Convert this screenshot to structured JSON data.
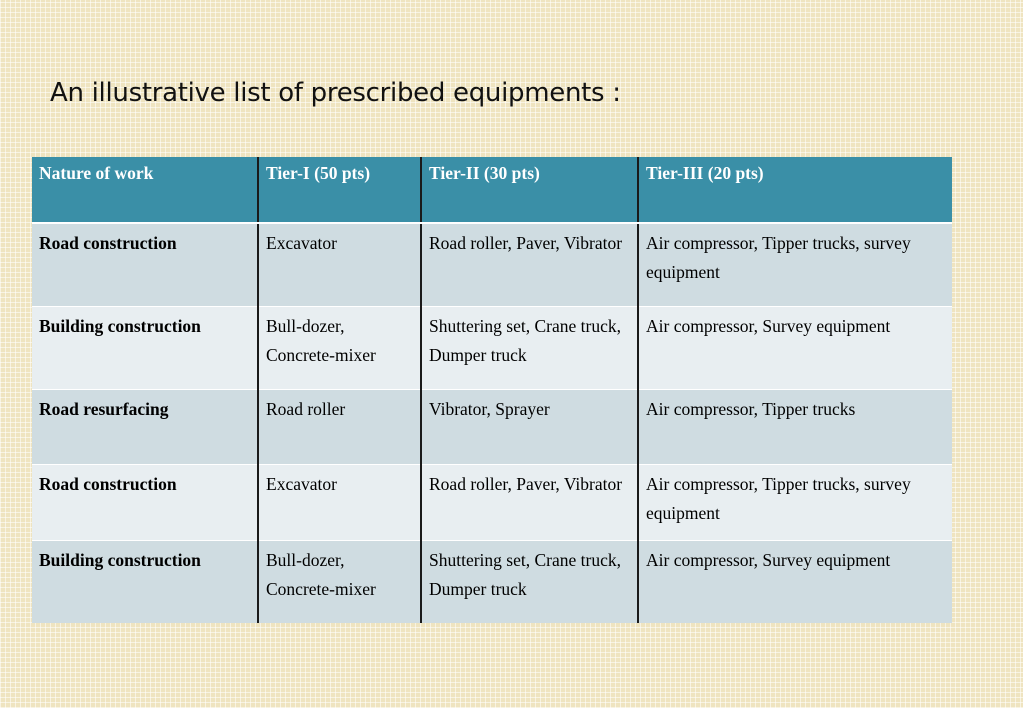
{
  "title": "An illustrative list of prescribed equipments :",
  "table": {
    "headers": [
      "Nature of work",
      "Tier-I  (50 pts)",
      "Tier-II (30 pts)",
      "Tier-III (20 pts)"
    ],
    "rows": [
      [
        "Road construction",
        "Excavator",
        "Road roller, Paver, Vibrator",
        "Air compressor, Tipper trucks, survey equipment"
      ],
      [
        "Building construction",
        "Bull-dozer, Concrete-mixer",
        "Shuttering set, Crane truck, Dumper truck",
        "Air compressor, Survey equipment"
      ],
      [
        "Road resurfacing",
        "Road roller",
        "Vibrator, Sprayer",
        "Air compressor, Tipper trucks"
      ],
      [
        "Road construction",
        "Excavator",
        "Road roller, Paver, Vibrator",
        "Air compressor, Tipper trucks, survey equipment"
      ],
      [
        "Building construction",
        "Bull-dozer, Concrete-mixer",
        "Shuttering set, Crane truck, Dumper truck",
        "Air compressor, Survey equipment"
      ]
    ]
  },
  "colors": {
    "header_bg": "#3a8fa7",
    "row_odd_bg": "#cfdce1",
    "row_even_bg": "#e8eef1",
    "page_bg": "#efe4c0"
  }
}
